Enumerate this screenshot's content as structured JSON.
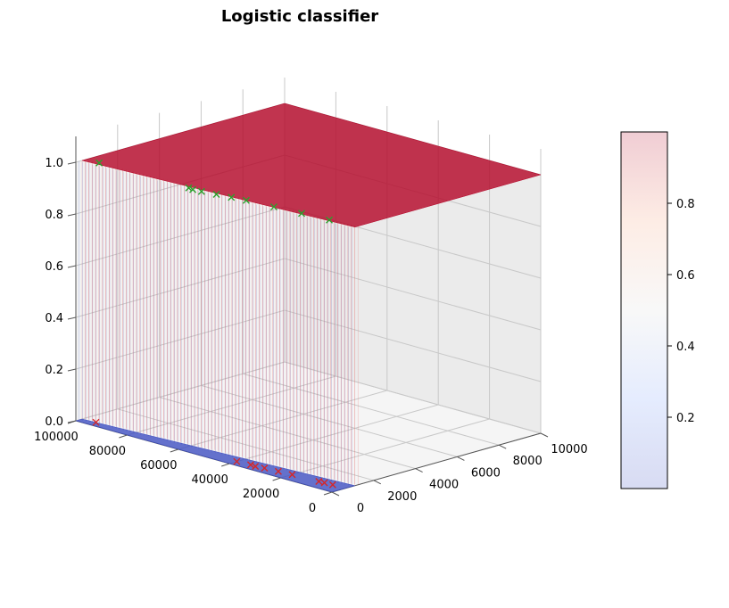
{
  "chart_data": {
    "type": "surface3d",
    "title": "Logistic classifier",
    "x_axis": {
      "ticks": [
        0,
        20000,
        40000,
        60000,
        80000,
        100000
      ],
      "tick_labels": [
        "0",
        "20000",
        "40000",
        "60000",
        "80000",
        "100000"
      ],
      "lim": [
        0,
        100000
      ]
    },
    "y_axis": {
      "ticks": [
        0,
        2000,
        4000,
        6000,
        8000,
        10000
      ],
      "tick_labels": [
        "0",
        "2000",
        "4000",
        "6000",
        "8000",
        "10000"
      ],
      "lim": [
        0,
        10000
      ]
    },
    "z_axis": {
      "ticks": [
        0.0,
        0.2,
        0.4,
        0.6,
        0.8,
        1.0
      ],
      "tick_labels": [
        "0.0",
        "0.2",
        "0.4",
        "0.6",
        "0.8",
        "1.0"
      ],
      "lim": [
        0,
        1
      ]
    },
    "surface": {
      "colormap": "coolwarm",
      "low_value": 0,
      "high_value": 1
    },
    "points": {
      "class_1": {
        "marker": "x",
        "color": "#2ca02c",
        "z": 1,
        "xy": [
          [
            95000,
            500
          ],
          [
            60000,
            500
          ],
          [
            55000,
            500
          ],
          [
            50000,
            600
          ],
          [
            45000,
            700
          ],
          [
            40000,
            800
          ],
          [
            30000,
            900
          ],
          [
            20000,
            1000
          ],
          [
            10000,
            1100
          ],
          [
            58000,
            450
          ]
        ]
      },
      "class_0": {
        "marker": "x",
        "color": "#d62728",
        "z": 0,
        "xy": [
          [
            95000,
            350
          ],
          [
            40000,
            350
          ],
          [
            35000,
            400
          ],
          [
            30000,
            450
          ],
          [
            25000,
            500
          ],
          [
            20000,
            550
          ],
          [
            10000,
            600
          ],
          [
            5000,
            650
          ],
          [
            33000,
            380
          ],
          [
            8000,
            620
          ]
        ]
      }
    },
    "colorbar": {
      "ticks": [
        0.2,
        0.4,
        0.6,
        0.8
      ],
      "tick_labels": [
        "0.2",
        "0.4",
        "0.6",
        "0.8"
      ],
      "range": [
        0,
        1
      ],
      "alpha": 0.2
    }
  }
}
